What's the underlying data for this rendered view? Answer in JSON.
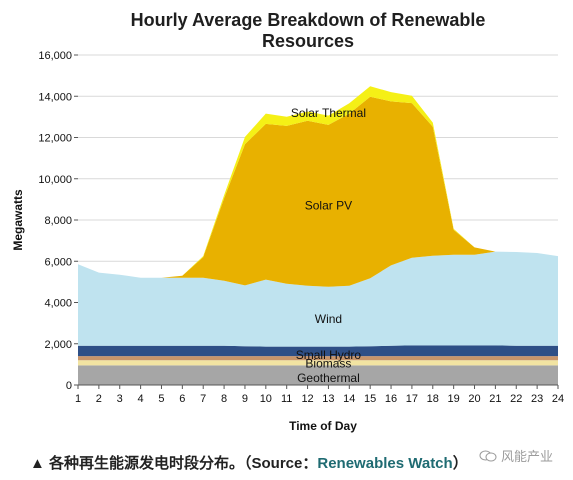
{
  "chart_data": {
    "type": "area",
    "stacked": true,
    "title_line1": "Hourly Average Breakdown of Renewable",
    "title_line2": "Resources",
    "xlabel": "Time of Day",
    "ylabel": "Megawatts",
    "x": [
      1,
      2,
      3,
      4,
      5,
      6,
      7,
      8,
      9,
      10,
      11,
      12,
      13,
      14,
      15,
      16,
      17,
      18,
      19,
      20,
      21,
      22,
      23,
      24
    ],
    "xlim": [
      1,
      24
    ],
    "ylim": [
      0,
      16000
    ],
    "yticks": [
      0,
      2000,
      4000,
      6000,
      8000,
      10000,
      12000,
      14000,
      16000
    ],
    "ytick_labels": [
      "0",
      "2,000",
      "4,000",
      "6,000",
      "8,000",
      "10,000",
      "12,000",
      "14,000",
      "16,000"
    ],
    "grid": true,
    "series": [
      {
        "name": "Geothermal",
        "color": "#a6a6a6",
        "values": [
          950,
          950,
          950,
          950,
          950,
          950,
          950,
          950,
          950,
          950,
          950,
          950,
          950,
          950,
          950,
          950,
          950,
          950,
          950,
          950,
          950,
          950,
          950,
          950
        ]
      },
      {
        "name": "Biomass",
        "color": "#f2e4a2",
        "values": [
          250,
          250,
          250,
          250,
          250,
          250,
          250,
          250,
          250,
          250,
          250,
          250,
          250,
          250,
          250,
          250,
          250,
          250,
          250,
          250,
          250,
          250,
          250,
          250
        ]
      },
      {
        "name": "Small Hydro",
        "color": "#c8956a",
        "values": [
          200,
          200,
          200,
          200,
          200,
          200,
          200,
          200,
          200,
          200,
          200,
          200,
          200,
          200,
          200,
          200,
          200,
          200,
          200,
          200,
          200,
          200,
          200,
          200
        ]
      },
      {
        "name": "",
        "color": "#2e4f86",
        "values": [
          500,
          500,
          500,
          500,
          500,
          500,
          500,
          500,
          480,
          460,
          460,
          460,
          460,
          460,
          480,
          500,
          520,
          520,
          520,
          520,
          520,
          500,
          500,
          500
        ]
      },
      {
        "name": "Wind",
        "color": "#bfe3ef",
        "values": [
          3950,
          3550,
          3450,
          3300,
          3300,
          3300,
          3300,
          3150,
          2950,
          3250,
          3050,
          2950,
          2900,
          2950,
          3300,
          3900,
          4250,
          4350,
          4400,
          4400,
          4550,
          4550,
          4500,
          4350
        ]
      },
      {
        "name": "Solar PV",
        "color": "#e8b100",
        "values": [
          0,
          0,
          0,
          0,
          0,
          100,
          1000,
          4000,
          6850,
          7550,
          7650,
          8000,
          7850,
          8350,
          8800,
          7950,
          7500,
          6250,
          1200,
          350,
          0,
          0,
          0,
          0
        ]
      },
      {
        "name": "Solar Thermal",
        "color": "#f5f016",
        "values": [
          0,
          0,
          0,
          0,
          0,
          0,
          50,
          150,
          350,
          500,
          450,
          450,
          450,
          500,
          500,
          450,
          350,
          200,
          50,
          0,
          0,
          0,
          0,
          0
        ]
      }
    ],
    "series_labels": {
      "solar_thermal": "Solar Thermal",
      "solar_pv": "Solar PV",
      "wind": "Wind",
      "small_hydro": "Small Hydro",
      "biomass": "Biomass",
      "geothermal": "Geothermal"
    }
  },
  "caption": {
    "prefix": "▲ 各种再生能源发电时段分布。（Source：",
    "source": "Renewables Watch",
    "suffix": "）"
  },
  "watermark": {
    "text": "风能产业",
    "icon": "wechat-icon"
  }
}
